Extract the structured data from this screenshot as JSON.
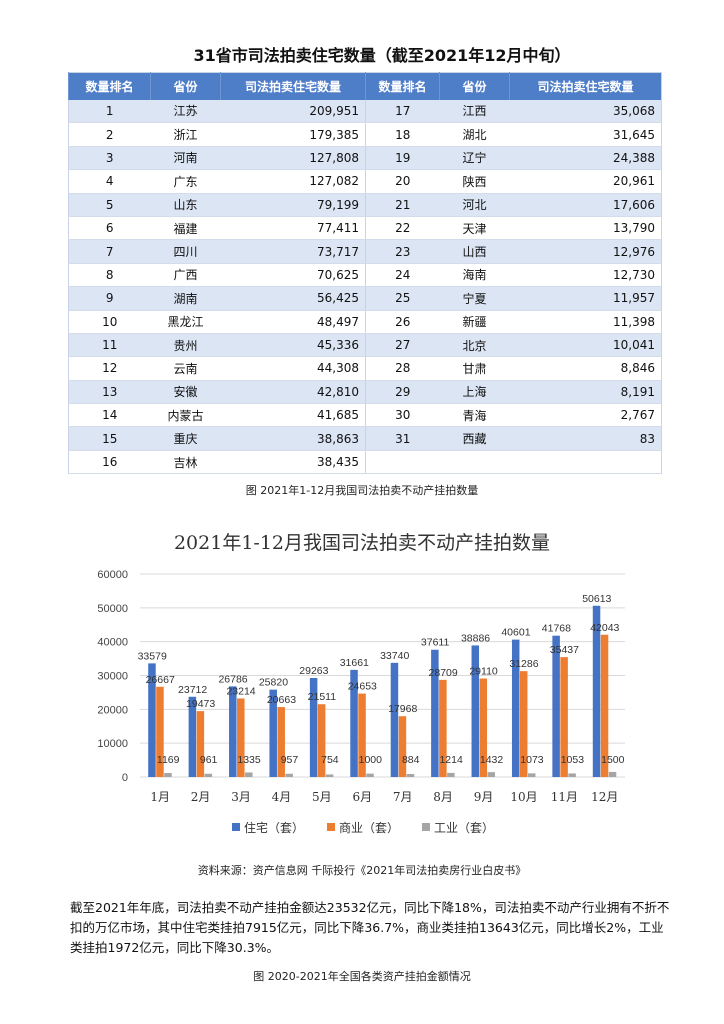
{
  "table": {
    "title": "31省市司法拍卖住宅数量（截至2021年12月中旬）",
    "headers": [
      "数量排名",
      "省份",
      "司法拍卖住宅数量",
      "数量排名",
      "省份",
      "司法拍卖住宅数量"
    ],
    "rows": [
      [
        "1",
        "江苏",
        "209,951",
        "17",
        "江西",
        "35,068"
      ],
      [
        "2",
        "浙江",
        "179,385",
        "18",
        "湖北",
        "31,645"
      ],
      [
        "3",
        "河南",
        "127,808",
        "19",
        "辽宁",
        "24,388"
      ],
      [
        "4",
        "广东",
        "127,082",
        "20",
        "陕西",
        "20,961"
      ],
      [
        "5",
        "山东",
        "79,199",
        "21",
        "河北",
        "17,606"
      ],
      [
        "6",
        "福建",
        "77,411",
        "22",
        "天津",
        "13,790"
      ],
      [
        "7",
        "四川",
        "73,717",
        "23",
        "山西",
        "12,976"
      ],
      [
        "8",
        "广西",
        "70,625",
        "24",
        "海南",
        "12,730"
      ],
      [
        "9",
        "湖南",
        "56,425",
        "25",
        "宁夏",
        "11,957"
      ],
      [
        "10",
        "黑龙江",
        "48,497",
        "26",
        "新疆",
        "11,398"
      ],
      [
        "11",
        "贵州",
        "45,336",
        "27",
        "北京",
        "10,041"
      ],
      [
        "12",
        "云南",
        "44,308",
        "28",
        "甘肃",
        "8,846"
      ],
      [
        "13",
        "安徽",
        "42,810",
        "29",
        "上海",
        "8,191"
      ],
      [
        "14",
        "内蒙古",
        "41,685",
        "30",
        "青海",
        "2,767"
      ],
      [
        "15",
        "重庆",
        "38,863",
        "31",
        "西藏",
        "83"
      ],
      [
        "16",
        "吉林",
        "38,435",
        "",
        "",
        ""
      ]
    ]
  },
  "caption1": "图 2021年1-12月我国司法拍卖不动产挂拍数量",
  "chart_data": {
    "type": "bar",
    "title": "2021年1-12月我国司法拍卖不动产挂拍数量",
    "categories": [
      "1月",
      "2月",
      "3月",
      "4月",
      "5月",
      "6月",
      "7月",
      "8月",
      "9月",
      "10月",
      "11月",
      "12月"
    ],
    "series": [
      {
        "name": "住宅（套）",
        "color": "#4472c4",
        "values": [
          33579,
          23712,
          26786,
          25820,
          29263,
          31661,
          33740,
          37611,
          38886,
          40601,
          41768,
          50613
        ]
      },
      {
        "name": "商业（套）",
        "color": "#ed7d31",
        "values": [
          26667,
          19473,
          23214,
          20663,
          21511,
          24653,
          17968,
          28709,
          29110,
          31286,
          35437,
          42043
        ]
      },
      {
        "name": "工业（套）",
        "color": "#a5a5a5",
        "values": [
          1169,
          961,
          1335,
          957,
          754,
          1000,
          884,
          1214,
          1432,
          1073,
          1053,
          1500
        ]
      }
    ],
    "yticks": [
      "0",
      "10000",
      "20000",
      "30000",
      "40000",
      "50000",
      "60000"
    ],
    "ylim": [
      0,
      60000
    ],
    "grid": true,
    "legend": "bottom"
  },
  "source": "资料来源：资产信息网 千际投行《2021年司法拍卖房行业白皮书》",
  "paragraph": "截至2021年年底，司法拍卖不动产挂拍金额达23532亿元，同比下降18%，司法拍卖不动产行业拥有不折不扣的万亿市场，其中住宅类挂拍7915亿元，同比下降36.7%，商业类挂拍13643亿元，同比增长2%，工业类挂拍1972亿元，同比下降30.3%。",
  "caption2": "图 2020-2021年全国各类资产挂拍金额情况"
}
